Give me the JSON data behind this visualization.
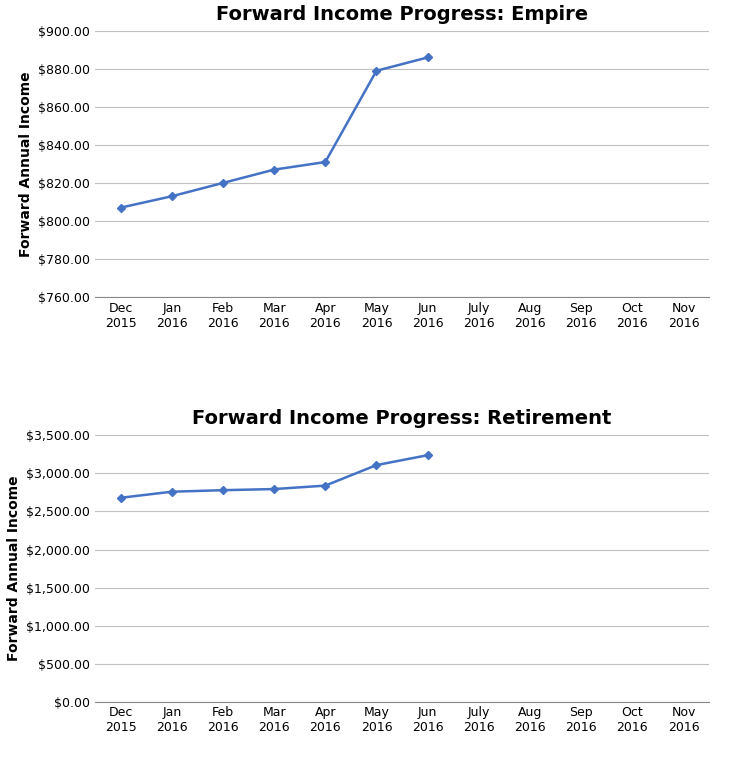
{
  "empire": {
    "title": "Forward Income Progress: Empire",
    "ylabel": "Forward Annual Income",
    "x_labels": [
      "Dec\n2015",
      "Jan\n2016",
      "Feb\n2016",
      "Mar\n2016",
      "Apr\n2016",
      "May\n2016",
      "Jun\n2016",
      "July\n2016",
      "Aug\n2016",
      "Sep\n2016",
      "Oct\n2016",
      "Nov\n2016"
    ],
    "x_data": [
      0,
      1,
      2,
      3,
      4,
      5,
      6,
      7,
      8,
      9,
      10,
      11
    ],
    "y_data": [
      807,
      813,
      820,
      827,
      831,
      879,
      886,
      null,
      null,
      null,
      null,
      null
    ],
    "ylim": [
      760,
      900
    ],
    "yticks": [
      760,
      780,
      800,
      820,
      840,
      860,
      880,
      900
    ],
    "line_color": "#4472C4",
    "marker": "D",
    "marker_size": 4,
    "line_width": 1.8
  },
  "retirement": {
    "title": "Forward Income Progress: Retirement",
    "ylabel": "Forward Annual Income",
    "x_labels": [
      "Dec\n2015",
      "Jan\n2016",
      "Feb\n2016",
      "Mar\n2016",
      "Apr\n2016",
      "May\n2016",
      "Jun\n2016",
      "July\n2016",
      "Aug\n2016",
      "Sep\n2016",
      "Oct\n2016",
      "Nov\n2016"
    ],
    "x_data": [
      0,
      1,
      2,
      3,
      4,
      5,
      6,
      7,
      8,
      9,
      10,
      11
    ],
    "y_data": [
      2680,
      2760,
      2780,
      2795,
      2840,
      3110,
      3240,
      null,
      null,
      null,
      null,
      null
    ],
    "ylim": [
      0,
      3500
    ],
    "yticks": [
      0,
      500,
      1000,
      1500,
      2000,
      2500,
      3000,
      3500
    ],
    "line_color": "#4472C4",
    "marker": "D",
    "marker_size": 4,
    "line_width": 1.8
  },
  "title_fontsize": 14,
  "axis_label_fontsize": 10,
  "tick_fontsize": 9,
  "background_color": "#FFFFFF",
  "grid_color": "#C0C0C0",
  "figure_width": 7.31,
  "figure_height": 7.71,
  "dpi": 100
}
